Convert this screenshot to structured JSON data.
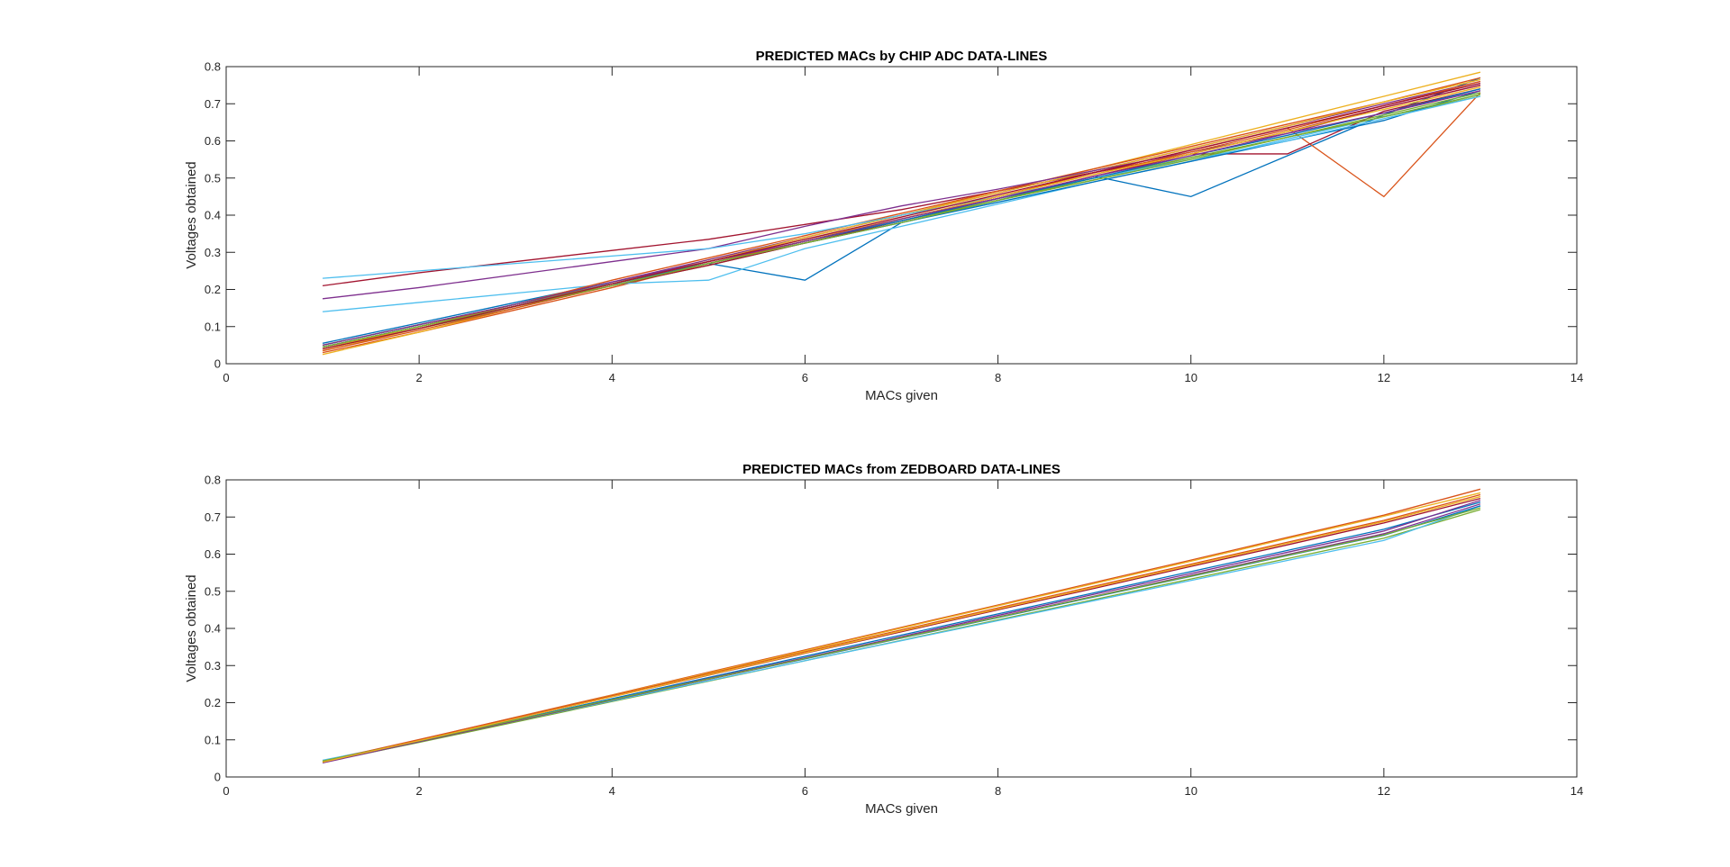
{
  "figure": {
    "background": "#ffffff"
  },
  "chart_data": [
    {
      "type": "line",
      "title": "PREDICTED MACs by CHIP ADC DATA-LINES",
      "xlabel": "MACs given",
      "ylabel": "Voltages obtained",
      "xlim": [
        0,
        14
      ],
      "ylim": [
        0,
        0.8
      ],
      "xticks": [
        0,
        2,
        4,
        6,
        8,
        10,
        12,
        14
      ],
      "yticks": [
        0,
        0.1,
        0.2,
        0.3,
        0.4,
        0.5,
        0.6,
        0.7,
        0.8
      ],
      "xtick_labels": [
        "0",
        "2",
        "4",
        "6",
        "8",
        "10",
        "12",
        "14"
      ],
      "ytick_labels": [
        "0",
        "0.1",
        "0.2",
        "0.3",
        "0.4",
        "0.5",
        "0.6",
        "0.7",
        "0.8"
      ],
      "grid": false,
      "legend": "none",
      "x": [
        1,
        2,
        3,
        4,
        5,
        6,
        7,
        8,
        9,
        10,
        11,
        12,
        13
      ],
      "series": [
        {
          "color": "#0072BD",
          "values": [
            0.055,
            0.11,
            0.165,
            0.22,
            0.27,
            0.225,
            0.38,
            0.44,
            0.505,
            0.45,
            0.56,
            0.67,
            0.77
          ]
        },
        {
          "color": "#D95319",
          "values": [
            0.03,
            0.085,
            0.145,
            0.205,
            0.27,
            0.33,
            0.39,
            0.45,
            0.515,
            0.575,
            0.635,
            0.45,
            0.73
          ]
        },
        {
          "color": "#EDB120",
          "values": [
            0.025,
            0.085,
            0.15,
            0.215,
            0.28,
            0.34,
            0.4,
            0.465,
            0.525,
            0.59,
            0.655,
            0.72,
            0.785
          ]
        },
        {
          "color": "#7E2F8E",
          "values": [
            0.045,
            0.1,
            0.16,
            0.22,
            0.28,
            0.34,
            0.4,
            0.46,
            0.52,
            0.58,
            0.64,
            0.7,
            0.76
          ]
        },
        {
          "color": "#77AC30",
          "values": [
            0.04,
            0.095,
            0.15,
            0.21,
            0.265,
            0.325,
            0.38,
            0.44,
            0.495,
            0.555,
            0.61,
            0.665,
            0.72
          ]
        },
        {
          "color": "#4DBEEE",
          "values": [
            0.14,
            0.165,
            0.19,
            0.215,
            0.225,
            0.31,
            0.37,
            0.43,
            0.49,
            0.545,
            0.605,
            0.665,
            0.725
          ]
        },
        {
          "color": "#A2142F",
          "values": [
            0.21,
            0.245,
            0.275,
            0.305,
            0.335,
            0.375,
            0.415,
            0.465,
            0.515,
            0.565,
            0.565,
            0.68,
            0.74
          ]
        },
        {
          "color": "#0072BD",
          "values": [
            0.05,
            0.105,
            0.16,
            0.215,
            0.27,
            0.325,
            0.38,
            0.435,
            0.49,
            0.545,
            0.6,
            0.655,
            0.735
          ]
        },
        {
          "color": "#D95319",
          "values": [
            0.04,
            0.1,
            0.16,
            0.225,
            0.285,
            0.345,
            0.405,
            0.465,
            0.525,
            0.585,
            0.645,
            0.705,
            0.77
          ]
        },
        {
          "color": "#EDB120",
          "values": [
            0.035,
            0.095,
            0.155,
            0.215,
            0.275,
            0.34,
            0.4,
            0.46,
            0.52,
            0.58,
            0.64,
            0.705,
            0.765
          ]
        },
        {
          "color": "#7E2F8E",
          "values": [
            0.175,
            0.205,
            0.24,
            0.275,
            0.31,
            0.37,
            0.425,
            0.47,
            0.52,
            0.57,
            0.62,
            0.69,
            0.75
          ]
        },
        {
          "color": "#77AC30",
          "values": [
            0.05,
            0.105,
            0.16,
            0.215,
            0.27,
            0.33,
            0.385,
            0.44,
            0.5,
            0.555,
            0.61,
            0.67,
            0.73
          ]
        },
        {
          "color": "#4DBEEE",
          "values": [
            0.23,
            0.25,
            0.27,
            0.29,
            0.31,
            0.35,
            0.4,
            0.45,
            0.5,
            0.55,
            0.6,
            0.66,
            0.72
          ]
        },
        {
          "color": "#A2142F",
          "values": [
            0.045,
            0.1,
            0.155,
            0.21,
            0.265,
            0.325,
            0.385,
            0.445,
            0.505,
            0.565,
            0.625,
            0.69,
            0.75
          ]
        },
        {
          "color": "#0072BD",
          "values": [
            0.045,
            0.1,
            0.155,
            0.215,
            0.27,
            0.33,
            0.385,
            0.445,
            0.5,
            0.56,
            0.615,
            0.675,
            0.74
          ]
        },
        {
          "color": "#D95319",
          "values": [
            0.035,
            0.09,
            0.15,
            0.21,
            0.27,
            0.33,
            0.39,
            0.45,
            0.51,
            0.57,
            0.63,
            0.695,
            0.76
          ]
        },
        {
          "color": "#EDB120",
          "values": [
            0.04,
            0.1,
            0.155,
            0.215,
            0.275,
            0.335,
            0.39,
            0.45,
            0.51,
            0.565,
            0.625,
            0.685,
            0.745
          ]
        },
        {
          "color": "#7E2F8E",
          "values": [
            0.05,
            0.105,
            0.16,
            0.22,
            0.275,
            0.33,
            0.39,
            0.445,
            0.505,
            0.56,
            0.62,
            0.675,
            0.735
          ]
        },
        {
          "color": "#77AC30",
          "values": [
            0.045,
            0.1,
            0.155,
            0.21,
            0.27,
            0.325,
            0.38,
            0.44,
            0.495,
            0.55,
            0.61,
            0.665,
            0.725
          ]
        },
        {
          "color": "#A2142F",
          "values": [
            0.04,
            0.095,
            0.155,
            0.215,
            0.275,
            0.335,
            0.395,
            0.455,
            0.515,
            0.575,
            0.635,
            0.695,
            0.755
          ]
        }
      ]
    },
    {
      "type": "line",
      "title": "PREDICTED MACs from ZEDBOARD DATA-LINES",
      "xlabel": "MACs given",
      "ylabel": "Voltages obtained",
      "xlim": [
        0,
        14
      ],
      "ylim": [
        0,
        0.8
      ],
      "xticks": [
        0,
        2,
        4,
        6,
        8,
        10,
        12,
        14
      ],
      "yticks": [
        0,
        0.1,
        0.2,
        0.3,
        0.4,
        0.5,
        0.6,
        0.7,
        0.8
      ],
      "xtick_labels": [
        "0",
        "2",
        "4",
        "6",
        "8",
        "10",
        "12",
        "14"
      ],
      "ytick_labels": [
        "0",
        "0.1",
        "0.2",
        "0.3",
        "0.4",
        "0.5",
        "0.6",
        "0.7",
        "0.8"
      ],
      "grid": false,
      "legend": "none",
      "x": [
        1,
        2,
        3,
        4,
        5,
        6,
        7,
        8,
        9,
        10,
        11,
        12,
        13
      ],
      "series": [
        {
          "color": "#0072BD",
          "values": [
            0.04,
            0.097,
            0.154,
            0.211,
            0.268,
            0.325,
            0.382,
            0.439,
            0.496,
            0.553,
            0.61,
            0.667,
            0.74
          ]
        },
        {
          "color": "#D95319",
          "values": [
            0.04,
            0.1,
            0.161,
            0.221,
            0.282,
            0.342,
            0.403,
            0.463,
            0.524,
            0.584,
            0.645,
            0.705,
            0.775
          ]
        },
        {
          "color": "#EDB120",
          "values": [
            0.042,
            0.099,
            0.16,
            0.22,
            0.28,
            0.34,
            0.401,
            0.461,
            0.521,
            0.581,
            0.642,
            0.702,
            0.765
          ]
        },
        {
          "color": "#7E2F8E",
          "values": [
            0.038,
            0.094,
            0.151,
            0.208,
            0.265,
            0.321,
            0.378,
            0.435,
            0.492,
            0.548,
            0.605,
            0.662,
            0.745
          ]
        },
        {
          "color": "#77AC30",
          "values": [
            0.04,
            0.093,
            0.148,
            0.203,
            0.258,
            0.313,
            0.368,
            0.423,
            0.478,
            0.533,
            0.588,
            0.643,
            0.72
          ]
        },
        {
          "color": "#4DBEEE",
          "values": [
            0.045,
            0.097,
            0.151,
            0.205,
            0.259,
            0.313,
            0.367,
            0.421,
            0.475,
            0.529,
            0.583,
            0.637,
            0.73
          ]
        },
        {
          "color": "#A2142F",
          "values": [
            0.04,
            0.099,
            0.157,
            0.216,
            0.274,
            0.333,
            0.391,
            0.45,
            0.508,
            0.567,
            0.625,
            0.684,
            0.75
          ]
        },
        {
          "color": "#0072BD",
          "values": [
            0.041,
            0.096,
            0.152,
            0.207,
            0.263,
            0.318,
            0.374,
            0.429,
            0.485,
            0.54,
            0.596,
            0.651,
            0.73
          ]
        },
        {
          "color": "#D95319",
          "values": [
            0.042,
            0.101,
            0.16,
            0.219,
            0.278,
            0.337,
            0.396,
            0.455,
            0.514,
            0.573,
            0.632,
            0.691,
            0.76
          ]
        },
        {
          "color": "#7E2F8E",
          "values": [
            0.039,
            0.095,
            0.151,
            0.207,
            0.263,
            0.319,
            0.375,
            0.431,
            0.487,
            0.543,
            0.599,
            0.655,
            0.735
          ]
        },
        {
          "color": "#77AC30",
          "values": [
            0.043,
            0.097,
            0.153,
            0.208,
            0.264,
            0.319,
            0.375,
            0.43,
            0.486,
            0.541,
            0.597,
            0.652,
            0.725
          ]
        },
        {
          "color": "#EDB120",
          "values": [
            0.04,
            0.098,
            0.157,
            0.216,
            0.275,
            0.334,
            0.393,
            0.452,
            0.511,
            0.57,
            0.629,
            0.688,
            0.755
          ]
        }
      ]
    }
  ]
}
